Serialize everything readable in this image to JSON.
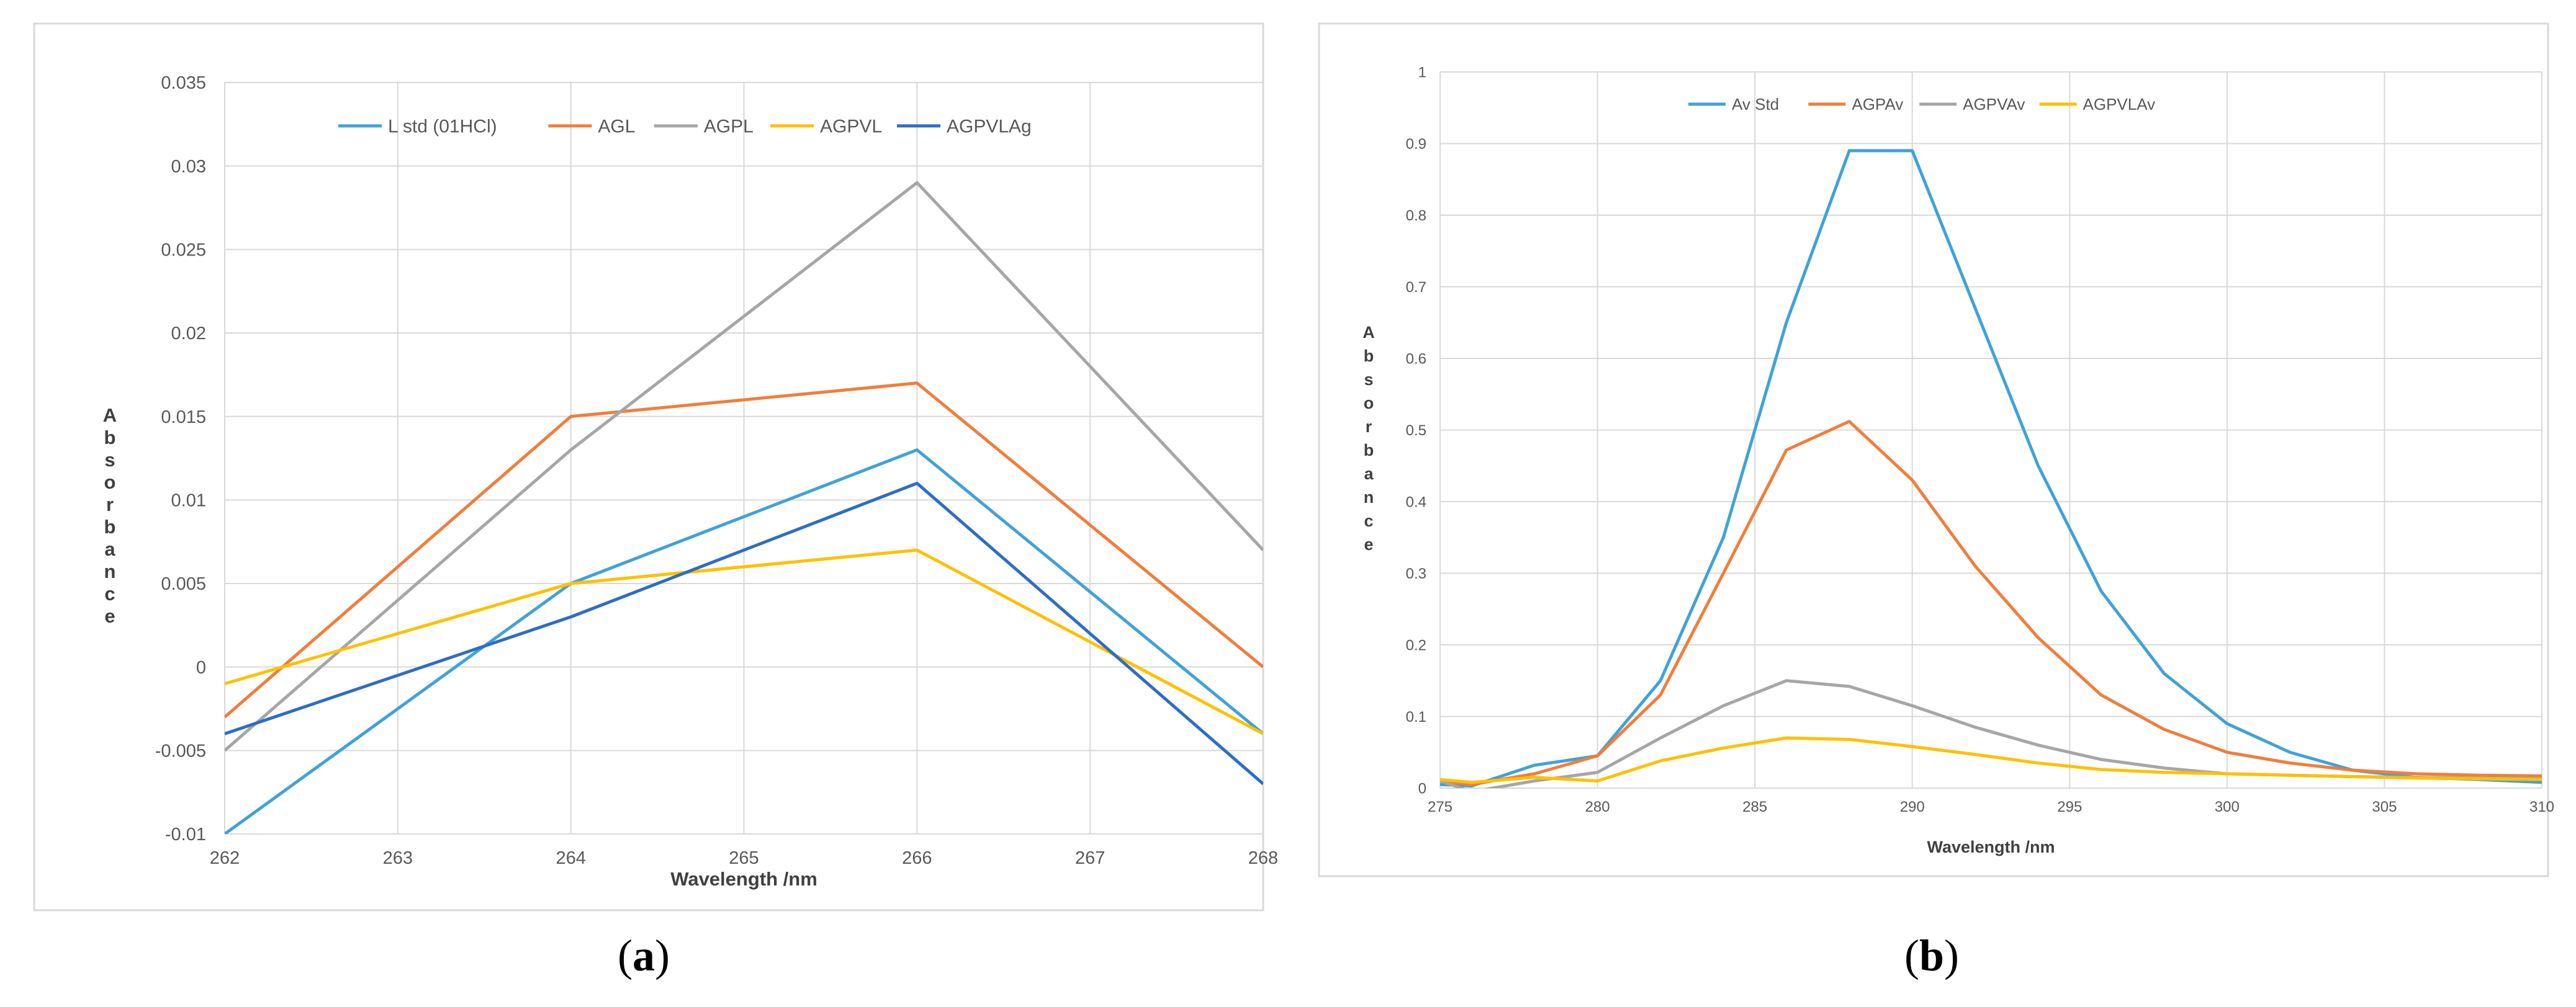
{
  "captions": {
    "a_open": "(",
    "a_letter": "a",
    "a_close": ")",
    "b_open": "(",
    "b_letter": "b",
    "b_close": ")"
  },
  "chart_data": [
    {
      "type": "line",
      "title": "",
      "xlabel": "Wavelength /nm",
      "ylabel": "Absorbance",
      "xlim": [
        262,
        268
      ],
      "ylim": [
        -0.01,
        0.035
      ],
      "xticks": [
        262,
        263,
        264,
        265,
        266,
        267,
        268
      ],
      "xtick_labels": [
        "262",
        "263",
        "264",
        "265",
        "266",
        "267",
        "268"
      ],
      "yticks": [
        -0.01,
        -0.005,
        0,
        0.005,
        0.01,
        0.015,
        0.02,
        0.025,
        0.03,
        0.035
      ],
      "ytick_labels": [
        "-0.01",
        "-0.005",
        "0",
        "0.005",
        "0.01",
        "0.015",
        "0.02",
        "0.025",
        "0.03",
        "0.035"
      ],
      "grid": true,
      "legend_position": "top",
      "x": [
        262,
        264,
        266,
        268
      ],
      "series": [
        {
          "name": "L std (01HCl)",
          "color": "#41A2D8",
          "values": [
            -0.01,
            0.005,
            0.013,
            -0.004
          ]
        },
        {
          "name": "AGL",
          "color": "#F07E3C",
          "values": [
            -0.003,
            0.015,
            0.017,
            0
          ]
        },
        {
          "name": "AGPL",
          "color": "#A6A6A6",
          "values": [
            -0.005,
            0.013,
            0.029,
            0.007
          ]
        },
        {
          "name": "AGPVL",
          "color": "#FFC000",
          "values": [
            -0.001,
            0.005,
            0.007,
            -0.004
          ]
        },
        {
          "name": "AGPVLAg",
          "color": "#2E6DC4",
          "values": [
            -0.004,
            0.003,
            0.011,
            -0.007
          ]
        }
      ]
    },
    {
      "type": "line",
      "title": "",
      "xlabel": "Wavelength /nm",
      "ylabel": "Absorbance",
      "xlim": [
        275,
        310
      ],
      "ylim": [
        0,
        1
      ],
      "xticks": [
        275,
        280,
        285,
        290,
        295,
        300,
        305,
        310
      ],
      "xtick_labels": [
        "275",
        "280",
        "285",
        "290",
        "295",
        "300",
        "305",
        "310"
      ],
      "yticks": [
        0,
        0.1,
        0.2,
        0.3,
        0.4,
        0.5,
        0.6,
        0.7,
        0.8,
        0.9,
        1
      ],
      "ytick_labels": [
        "0",
        "0.1",
        "0.2",
        "0.3",
        "0.4",
        "0.5",
        "0.6",
        "0.7",
        "0.8",
        "0.9",
        "1"
      ],
      "grid": true,
      "legend_position": "top",
      "x": [
        275,
        276,
        278,
        280,
        282,
        284,
        286,
        288,
        290,
        292,
        294,
        296,
        298,
        300,
        302,
        304,
        306,
        308,
        310
      ],
      "series": [
        {
          "name": "Av Std",
          "color": "#41A2D8",
          "values": [
            0.005,
            0.003,
            0.032,
            0.045,
            0.15,
            0.35,
            0.65,
            0.89,
            0.89,
            0.67,
            0.45,
            0.275,
            0.16,
            0.09,
            0.05,
            0.025,
            0.015,
            0.012,
            0.008
          ]
        },
        {
          "name": "AGPAv",
          "color": "#F07E3C",
          "values": [
            0.01,
            0.005,
            0.02,
            0.045,
            0.13,
            0.3,
            0.472,
            0.512,
            0.43,
            0.31,
            0.21,
            0.13,
            0.082,
            0.05,
            0.035,
            0.025,
            0.02,
            0.018,
            0.017
          ]
        },
        {
          "name": "AGPVAv",
          "color": "#A6A6A6",
          "values": [
            0.01,
            -0.005,
            0.01,
            0.022,
            0.07,
            0.115,
            0.15,
            0.142,
            0.115,
            0.085,
            0.06,
            0.04,
            0.028,
            0.02,
            0.018,
            0.016,
            0.015,
            0.014,
            0.013
          ]
        },
        {
          "name": "AGPVLAv",
          "color": "#FFC000",
          "values": [
            0.012,
            0.008,
            0.015,
            0.01,
            0.038,
            0.056,
            0.07,
            0.068,
            0.058,
            0.047,
            0.035,
            0.026,
            0.022,
            0.02,
            0.018,
            0.016,
            0.014,
            0.013,
            0.012
          ]
        }
      ]
    }
  ]
}
